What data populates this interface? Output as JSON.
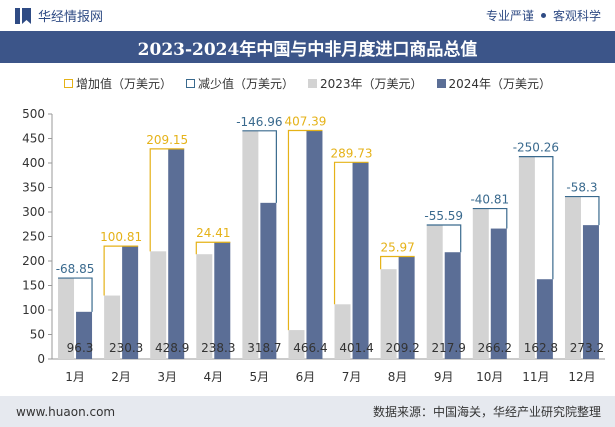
{
  "header": {
    "brand_name": "华经情报网",
    "tagline_left": "专业严谨",
    "tagline_right": "客观科学",
    "logo_icon": "bookmark-logo-icon"
  },
  "colors": {
    "title_bar": "#3c5589",
    "bar_2023": "#d3d3d3",
    "bar_2024": "#5b6e96",
    "increase_outline": "#e5b218",
    "decrease_outline": "#3a6a8e",
    "increase_label": "#e5b218",
    "decrease_label": "#3a6a8e",
    "footer_bg": "#e6e9ef"
  },
  "chart_data": {
    "type": "bar",
    "title": "2023-2024年中国与中非月度进口商品总值",
    "categories": [
      "1月",
      "2月",
      "3月",
      "4月",
      "5月",
      "6月",
      "7月",
      "8月",
      "9月",
      "10月",
      "11月",
      "12月"
    ],
    "series": [
      {
        "name": "2023年（万美元）",
        "values": [
          165.15,
          129.49,
          219.75,
          213.89,
          465.66,
          59.01,
          111.67,
          183.23,
          273.49,
          307.01,
          413.06,
          331.5
        ]
      },
      {
        "name": "2024年（万美元）",
        "values": [
          96.3,
          230.3,
          428.9,
          238.3,
          318.7,
          466.4,
          401.4,
          209.2,
          217.9,
          266.2,
          162.8,
          273.2
        ]
      }
    ],
    "change": {
      "increase_name": "增加值（万美元）",
      "decrease_name": "减少值（万美元）",
      "values": [
        -68.85,
        100.81,
        209.15,
        24.41,
        -146.96,
        407.39,
        289.73,
        25.97,
        -55.59,
        -40.81,
        -250.26,
        -58.3
      ],
      "labels": [
        "-68.85",
        "100.81",
        "209.15",
        "24.41",
        "-146.96",
        "407.39",
        "289.73",
        "25.97",
        "-55.59",
        "-40.81",
        "-250.26",
        "-58.3"
      ]
    },
    "value_labels_2024": [
      "96.3",
      "230.3",
      "428.9",
      "238.3",
      "318.7",
      "466.4",
      "401.4",
      "209.2",
      "217.9",
      "266.2",
      "162.8",
      "273.2"
    ],
    "ylim": [
      0,
      500
    ],
    "yticks": [
      0,
      50,
      100,
      150,
      200,
      250,
      300,
      350,
      400,
      450,
      500
    ],
    "grid": false,
    "legend_position": "top-center"
  },
  "footer": {
    "url": "www.huaon.com",
    "source": "数据来源：中国海关，华经产业研究院整理"
  }
}
